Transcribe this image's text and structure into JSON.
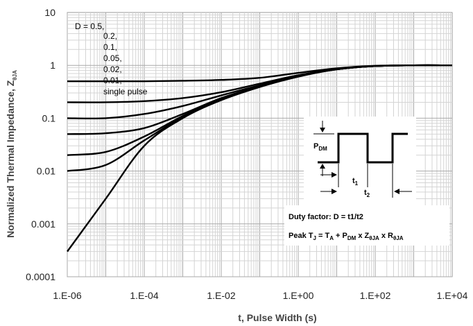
{
  "chart_data": {
    "type": "line",
    "xlabel": "t, Pulse Width (s)",
    "ylabel": "Normalized Thermal Impedance, Z",
    "ylabel_sub": "θJA",
    "x_scale": "log",
    "y_scale": "log",
    "xlim": [
      1e-06,
      10000.0
    ],
    "ylim": [
      0.0001,
      10
    ],
    "x_ticks": [
      "1.E-06",
      "1.E-04",
      "1.E-02",
      "1.E+00",
      "1.E+02",
      "1.E+04"
    ],
    "y_ticks": [
      "10",
      "1",
      "0.1",
      "0.01",
      "0.001",
      "0.0001"
    ],
    "grid": true,
    "legend_lines": [
      "D = 0.5,",
      "0.2,",
      "0.1,",
      "0.05,",
      "0.02,",
      "0.01,",
      "single pulse"
    ],
    "series": [
      {
        "name": "D = 0.5",
        "x": [
          1e-06,
          1e-05,
          0.0001,
          0.001,
          0.01,
          0.1,
          1,
          10,
          100,
          1000,
          10000
        ],
        "y": [
          0.5,
          0.5,
          0.5,
          0.51,
          0.53,
          0.58,
          0.72,
          0.88,
          0.98,
          1.0,
          1.0
        ]
      },
      {
        "name": "0.2",
        "x": [
          1e-06,
          1e-05,
          0.0001,
          0.001,
          0.01,
          0.1,
          1,
          10,
          100,
          1000,
          10000
        ],
        "y": [
          0.2,
          0.2,
          0.21,
          0.24,
          0.31,
          0.45,
          0.65,
          0.85,
          0.97,
          1.0,
          1.0
        ]
      },
      {
        "name": "0.1",
        "x": [
          1e-06,
          1e-05,
          0.0001,
          0.001,
          0.01,
          0.1,
          1,
          10,
          100,
          1000,
          10000
        ],
        "y": [
          0.1,
          0.1,
          0.12,
          0.17,
          0.27,
          0.42,
          0.63,
          0.84,
          0.97,
          1.0,
          1.0
        ]
      },
      {
        "name": "0.05",
        "x": [
          1e-06,
          1e-05,
          0.0001,
          0.001,
          0.01,
          0.1,
          1,
          10,
          100,
          1000,
          10000
        ],
        "y": [
          0.05,
          0.052,
          0.065,
          0.12,
          0.24,
          0.4,
          0.62,
          0.84,
          0.97,
          1.0,
          1.0
        ]
      },
      {
        "name": "0.02",
        "x": [
          1e-06,
          1e-05,
          0.0001,
          0.001,
          0.01,
          0.1,
          1,
          10,
          100,
          1000,
          10000
        ],
        "y": [
          0.02,
          0.023,
          0.045,
          0.11,
          0.23,
          0.4,
          0.62,
          0.84,
          0.97,
          1.0,
          1.0
        ]
      },
      {
        "name": "0.01",
        "x": [
          1e-06,
          1e-05,
          0.0001,
          0.001,
          0.01,
          0.1,
          1,
          10,
          100,
          1000,
          10000
        ],
        "y": [
          0.01,
          0.013,
          0.038,
          0.105,
          0.22,
          0.39,
          0.62,
          0.84,
          0.97,
          1.0,
          1.0
        ]
      },
      {
        "name": "single pulse",
        "x": [
          1e-06,
          1e-05,
          0.0001,
          0.001,
          0.01,
          0.1,
          1,
          10,
          100,
          1000,
          10000
        ],
        "y": [
          0.0003,
          0.003,
          0.03,
          0.1,
          0.22,
          0.39,
          0.61,
          0.84,
          0.97,
          1.0,
          1.0
        ]
      }
    ],
    "inset": {
      "pdm_label": "P",
      "pdm_sub": "DM",
      "t1_label": "t",
      "t1_sub": "1",
      "t2_label": "t",
      "t2_sub": "2",
      "duty_text": "Duty factor: D = t1/t2",
      "peak_text": "Peak T",
      "peak_parts": [
        {
          "t": "J",
          "s": true
        },
        {
          "t": " = T",
          "s": false
        },
        {
          "t": "A",
          "s": true
        },
        {
          "t": " + P",
          "s": false
        },
        {
          "t": "DM",
          "s": true
        },
        {
          "t": " x Z",
          "s": false
        },
        {
          "t": "θJA",
          "s": true
        },
        {
          "t": " x R",
          "s": false
        },
        {
          "t": "θJA",
          "s": true
        }
      ]
    }
  }
}
